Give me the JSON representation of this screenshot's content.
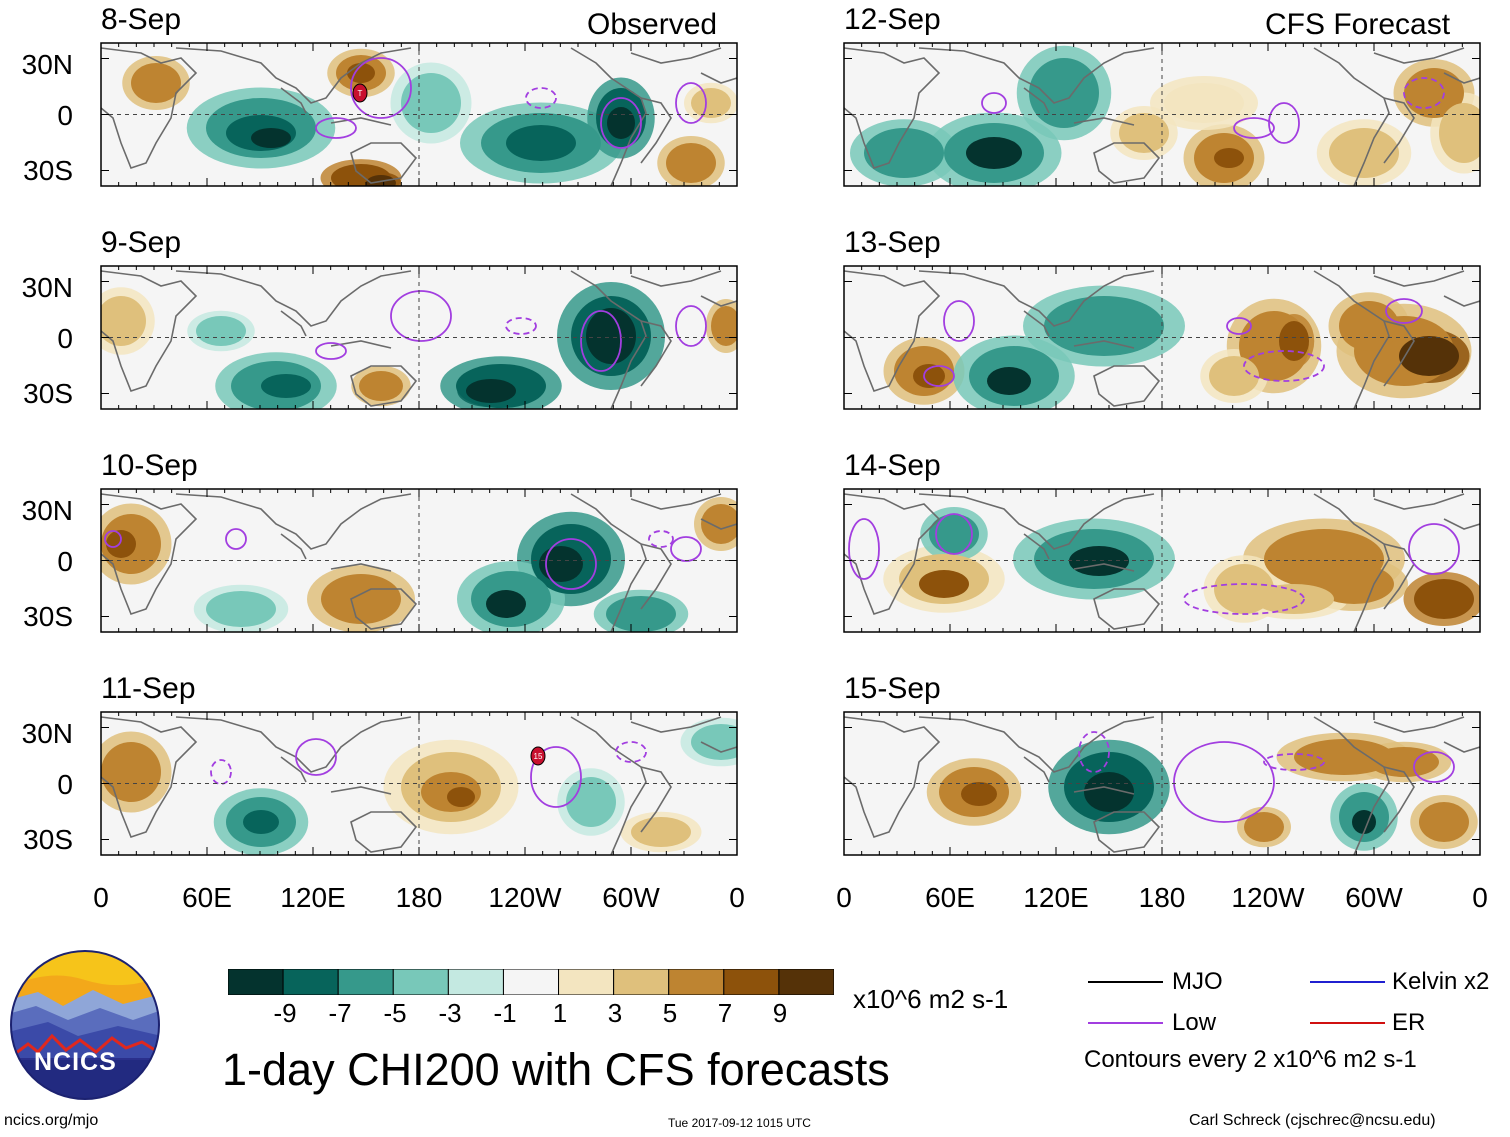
{
  "title": "1-day CHI200 with CFS forecasts",
  "headers": {
    "observed": "Observed",
    "forecast": "CFS Forecast"
  },
  "observed_dates": [
    "8-Sep",
    "9-Sep",
    "10-Sep",
    "11-Sep"
  ],
  "forecast_dates": [
    "12-Sep",
    "13-Sep",
    "14-Sep",
    "15-Sep"
  ],
  "lat_labels": [
    "30N",
    "0",
    "30S"
  ],
  "lon_labels": [
    "0",
    "60E",
    "120E",
    "180",
    "120W",
    "60W",
    "0"
  ],
  "colorbar": {
    "colors": [
      "#04332e",
      "#07645b",
      "#36998b",
      "#78c8b9",
      "#c4e9e1",
      "#f5f5f5",
      "#f3e5c0",
      "#dfc07c",
      "#be8431",
      "#8d520b",
      "#553208"
    ],
    "labels": [
      "-9",
      "-7",
      "-5",
      "-3",
      "-1",
      "1",
      "3",
      "5",
      "7",
      "9"
    ],
    "units": "x10^6 m2 s-1"
  },
  "legend": {
    "items": [
      {
        "label": "MJO",
        "color": "#000000"
      },
      {
        "label": "Low",
        "color": "#a23ee0"
      },
      {
        "label": "Kelvin x2",
        "color": "#2020d0"
      },
      {
        "label": "ER",
        "color": "#d01010"
      }
    ],
    "note": "Contours every 2 x10^6 m2 s-1"
  },
  "logo_text": "NCICS",
  "footer": {
    "left": "ncics.org/mjo",
    "center": "Tue 2017-09-12 1015 UTC",
    "right": "Carl Schreck (cjschrec@ncsu.edu)"
  },
  "storm_markers": [
    {
      "panel": "8-Sep",
      "label": "T"
    },
    {
      "panel": "11-Sep",
      "label": "15"
    }
  ]
}
